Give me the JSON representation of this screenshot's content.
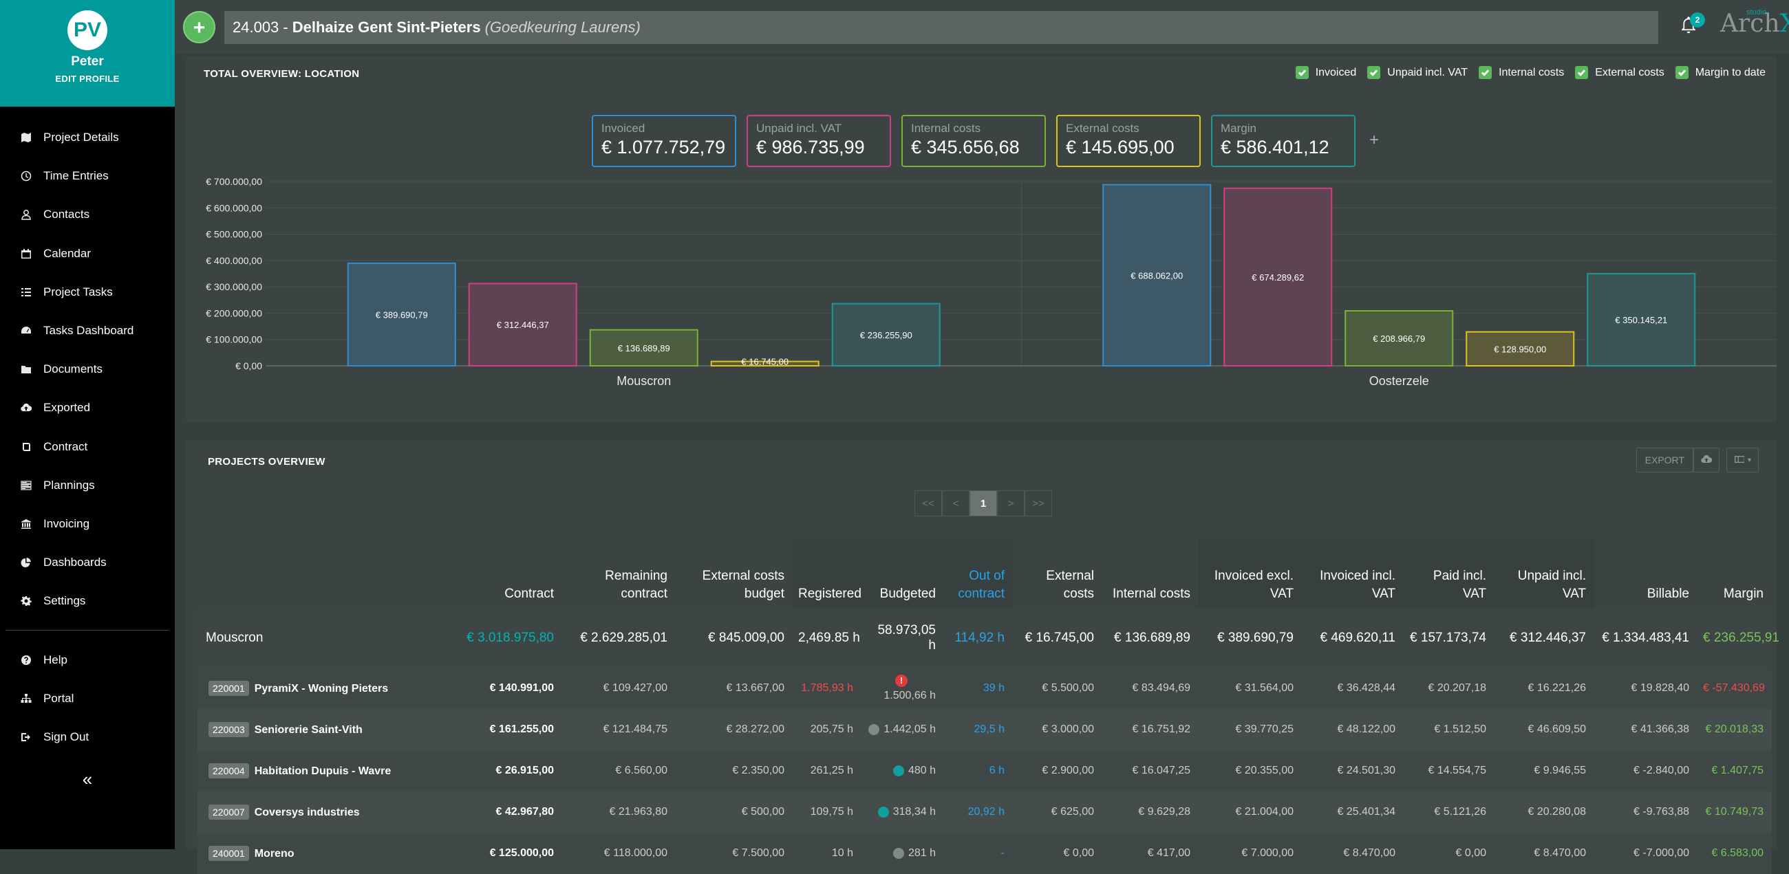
{
  "sidebar": {
    "avatar_initials": "PV",
    "name": "Peter",
    "edit_profile": "EDIT PROFILE",
    "items": [
      {
        "label": "Project Details",
        "icon": "map-icon"
      },
      {
        "label": "Time Entries",
        "icon": "clock-icon"
      },
      {
        "label": "Contacts",
        "icon": "user-icon"
      },
      {
        "label": "Calendar",
        "icon": "calendar-icon"
      },
      {
        "label": "Project Tasks",
        "icon": "list-icon"
      },
      {
        "label": "Tasks Dashboard",
        "icon": "dashboard-icon"
      },
      {
        "label": "Documents",
        "icon": "folder-icon"
      },
      {
        "label": "Exported",
        "icon": "cloud-upload-icon"
      },
      {
        "label": "Contract",
        "icon": "book-icon"
      },
      {
        "label": "Plannings",
        "icon": "tasks-icon"
      },
      {
        "label": "Invoicing",
        "icon": "bank-icon"
      },
      {
        "label": "Dashboards",
        "icon": "pie-chart-icon"
      },
      {
        "label": "Settings",
        "icon": "gear-icon"
      }
    ],
    "bottom_items": [
      {
        "label": "Help",
        "icon": "question-icon"
      },
      {
        "label": "Portal",
        "icon": "sitemap-icon"
      },
      {
        "label": "Sign Out",
        "icon": "sign-out-icon"
      }
    ],
    "collapse": "«"
  },
  "topbar": {
    "add": "+",
    "project_number": "24.003 -",
    "project_name": "Delhaize Gent Sint-Pieters",
    "project_status": "(Goedkeuring Laurens)",
    "notification_count": "2",
    "logo_main": "Arch",
    "logo_x": "X",
    "logo_small": "studio"
  },
  "overview": {
    "title": "TOTAL OVERVIEW: LOCATION",
    "legend": [
      "Invoiced",
      "Unpaid incl. VAT",
      "Internal costs",
      "External costs",
      "Margin to date"
    ],
    "kpis": [
      {
        "label": "Invoiced",
        "value": "€ 1.077.752,79",
        "color": "#2f8fd6"
      },
      {
        "label": "Unpaid incl. VAT",
        "value": "€ 986.735,99",
        "color": "#d63c85"
      },
      {
        "label": "Internal costs",
        "value": "€ 345.656,68",
        "color": "#79b530"
      },
      {
        "label": "External costs",
        "value": "€ 145.695,00",
        "color": "#e0c21c"
      },
      {
        "label": "Margin",
        "value": "€ 586.401,12",
        "color": "#1a9999"
      }
    ],
    "kpi_plus": "+"
  },
  "chart_data": {
    "type": "bar",
    "categories": [
      "Mouscron",
      "Oosterzele"
    ],
    "series": [
      {
        "name": "Invoiced",
        "values": [
          389690.79,
          688062.0
        ],
        "labels": [
          "€ 389.690,79",
          "€ 688.062,00"
        ],
        "color": "#2f8fd6",
        "fill": "#3d5866"
      },
      {
        "name": "Unpaid incl. VAT",
        "values": [
          312446.37,
          674289.62
        ],
        "labels": [
          "€ 312.446,37",
          "€ 674.289,62"
        ],
        "color": "#d63c85",
        "fill": "#5e4352"
      },
      {
        "name": "Internal costs",
        "values": [
          136689.89,
          208966.79
        ],
        "labels": [
          "€ 136.689,89",
          "€ 208.966,79"
        ],
        "color": "#79b530",
        "fill": "#4c5e3f"
      },
      {
        "name": "External costs",
        "values": [
          16745.0,
          128950.0
        ],
        "labels": [
          "€ 16.745,00",
          "€ 128.950,00"
        ],
        "color": "#e0c21c",
        "fill": "#5d5a3a"
      },
      {
        "name": "Margin to date",
        "values": [
          236255.9,
          350145.21
        ],
        "labels": [
          "€ 236.255,90",
          "€ 350.145,21"
        ],
        "color": "#1a9999",
        "fill": "#3b5556"
      }
    ],
    "ylim": [
      0,
      700000
    ],
    "yticks": [
      "€ 0,00",
      "€ 100.000,00",
      "€ 200.000,00",
      "€ 300.000,00",
      "€ 400.000,00",
      "€ 500.000,00",
      "€ 600.000,00",
      "€ 700.000,00"
    ],
    "grid": true
  },
  "projects": {
    "title": "PROJECTS OVERVIEW",
    "export": "EXPORT",
    "pager": [
      "<<",
      "<",
      "1",
      ">",
      ">>"
    ],
    "columns": [
      "",
      "Contract",
      "Remaining contract",
      "External costs budget",
      "Registered",
      "Budgeted",
      "Out of contract",
      "External costs",
      "Internal costs",
      "Invoiced excl. VAT",
      "Invoiced incl. VAT",
      "Paid incl. VAT",
      "Unpaid incl. VAT",
      "Billable",
      "Margin"
    ],
    "group": {
      "name": "Mouscron",
      "contract": "€ 3.018.975,80",
      "remaining": "€ 2.629.285,01",
      "ext_budget": "€ 845.009,00",
      "registered": "2,469.85 h",
      "budgeted": "58.973,05 h",
      "out_of_contract": "114,92 h",
      "ext_costs": "€ 16.745,00",
      "int_costs": "€ 136.689,89",
      "inv_excl": "€ 389.690,79",
      "inv_incl": "€ 469.620,11",
      "paid": "€ 157.173,74",
      "unpaid": "€ 312.446,37",
      "billable": "€ 1.334.483,41",
      "margin": "€ 236.255,91"
    },
    "rows": [
      {
        "code": "220001",
        "name": "PyramiX - Woning Pieters",
        "contract": "€ 140.991,00",
        "remaining": "€ 109.427,00",
        "ext_budget": "€ 13.667,00",
        "registered": "1.785,93 h",
        "budgeted": "1.500,66 h",
        "out_of_contract": "39 h",
        "ext_costs": "€ 5.500,00",
        "int_costs": "€ 83.494,69",
        "inv_excl": "€ 31.564,00",
        "inv_incl": "€ 36.428,44",
        "paid": "€ 20.207,18",
        "unpaid": "€ 16.221,26",
        "billable": "€ 19.828,40",
        "margin": "€ -57.430,69",
        "alert": "!"
      },
      {
        "code": "220003",
        "name": "Seniorerie Saint-Vith",
        "contract": "€ 161.255,00",
        "remaining": "€ 121.484,75",
        "ext_budget": "€ 28.272,00",
        "registered": "205,75 h",
        "budgeted": "1.442,05 h",
        "out_of_contract": "29,5 h",
        "ext_costs": "€ 3.000,00",
        "int_costs": "€ 16.751,92",
        "inv_excl": "€ 39.770,25",
        "inv_incl": "€ 48.122,00",
        "paid": "€ 1.512,50",
        "unpaid": "€ 46.609,50",
        "billable": "€ 41.366,38",
        "margin": "€ 20.018,33"
      },
      {
        "code": "220004",
        "name": "Habitation Dupuis - Wavre",
        "contract": "€ 26.915,00",
        "remaining": "€ 6.560,00",
        "ext_budget": "€ 2.350,00",
        "registered": "261,25 h",
        "budgeted": "480 h",
        "out_of_contract": "6 h",
        "ext_costs": "€ 2.900,00",
        "int_costs": "€ 16.047,25",
        "inv_excl": "€ 20.355,00",
        "inv_incl": "€ 24.501,30",
        "paid": "€ 14.554,75",
        "unpaid": "€ 9.946,55",
        "billable": "€ -2.840,00",
        "margin": "€ 1.407,75"
      },
      {
        "code": "220007",
        "name": "Coversys industries",
        "contract": "€ 42.967,80",
        "remaining": "€ 21.963,80",
        "ext_budget": "€ 500,00",
        "registered": "109,75 h",
        "budgeted": "318,34 h",
        "out_of_contract": "20,92 h",
        "ext_costs": "€ 625,00",
        "int_costs": "€ 9.629,28",
        "inv_excl": "€ 21.004,00",
        "inv_incl": "€ 25.401,34",
        "paid": "€ 5.121,26",
        "unpaid": "€ 20.280,08",
        "billable": "€ -9.763,88",
        "margin": "€ 10.749,73"
      },
      {
        "code": "240001",
        "name": "Moreno",
        "contract": "€ 125.000,00",
        "remaining": "€ 118.000,00",
        "ext_budget": "€ 7.500,00",
        "registered": "10 h",
        "budgeted": "281 h",
        "out_of_contract": "-",
        "ext_costs": "€ 0,00",
        "int_costs": "€ 417,00",
        "inv_excl": "€ 7.000,00",
        "inv_incl": "€ 8.470,00",
        "paid": "€ 0,00",
        "unpaid": "€ 8.470,00",
        "billable": "€ -7.000,00",
        "margin": "€ 6.583,00"
      }
    ]
  }
}
